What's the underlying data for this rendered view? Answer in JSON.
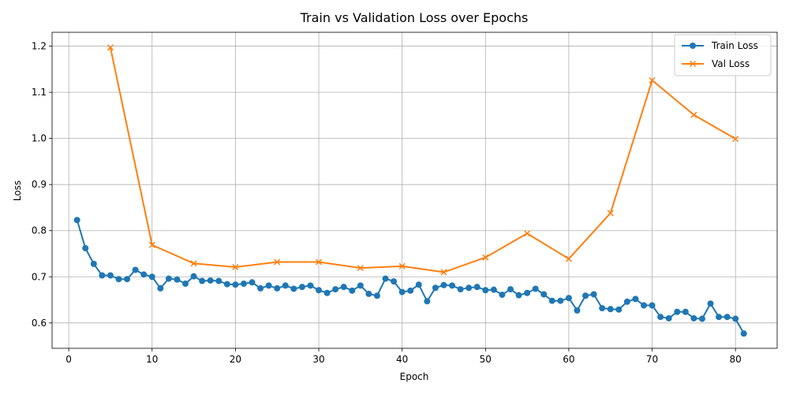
{
  "chart_data": {
    "type": "line",
    "title": "Train vs Validation Loss over Epochs",
    "xlabel": "Epoch",
    "ylabel": "Loss",
    "xlim": [
      -2,
      85
    ],
    "ylim": [
      0.545,
      1.23
    ],
    "xticks": [
      0,
      10,
      20,
      30,
      40,
      50,
      60,
      70,
      80
    ],
    "yticks": [
      0.6,
      0.7,
      0.8,
      0.9,
      1.0,
      1.1,
      1.2
    ],
    "grid": true,
    "legend_position": "top-right",
    "series": [
      {
        "name": "Train Loss",
        "color": "#1f77b4",
        "marker": "circle",
        "x": [
          1,
          2,
          3,
          4,
          5,
          6,
          7,
          8,
          9,
          10,
          11,
          12,
          13,
          14,
          15,
          16,
          17,
          18,
          19,
          20,
          21,
          22,
          23,
          24,
          25,
          26,
          27,
          28,
          29,
          30,
          31,
          32,
          33,
          34,
          35,
          36,
          37,
          38,
          39,
          40,
          41,
          42,
          43,
          44,
          45,
          46,
          47,
          48,
          49,
          50,
          51,
          52,
          53,
          54,
          55,
          56,
          57,
          58,
          59,
          60,
          61,
          62,
          63,
          64,
          65,
          66,
          67,
          68,
          69,
          70,
          71,
          72,
          73,
          74,
          75,
          76,
          77,
          78,
          79,
          80,
          81
        ],
        "y": [
          0.823,
          0.762,
          0.728,
          0.703,
          0.703,
          0.695,
          0.695,
          0.715,
          0.705,
          0.7,
          0.675,
          0.696,
          0.694,
          0.685,
          0.701,
          0.691,
          0.692,
          0.691,
          0.684,
          0.683,
          0.685,
          0.688,
          0.675,
          0.681,
          0.675,
          0.681,
          0.674,
          0.678,
          0.681,
          0.671,
          0.665,
          0.673,
          0.678,
          0.67,
          0.681,
          0.663,
          0.659,
          0.696,
          0.69,
          0.667,
          0.67,
          0.683,
          0.647,
          0.676,
          0.682,
          0.681,
          0.673,
          0.676,
          0.678,
          0.671,
          0.672,
          0.661,
          0.673,
          0.66,
          0.665,
          0.674,
          0.662,
          0.648,
          0.648,
          0.654,
          0.627,
          0.659,
          0.662,
          0.632,
          0.63,
          0.629,
          0.646,
          0.652,
          0.638,
          0.638,
          0.613,
          0.61,
          0.624,
          0.624,
          0.61,
          0.609,
          0.642,
          0.613,
          0.613,
          0.609,
          0.577
        ]
      },
      {
        "name": "Val Loss",
        "color": "#ff7f0e",
        "marker": "x",
        "x": [
          5,
          10,
          15,
          20,
          25,
          30,
          35,
          40,
          45,
          50,
          55,
          60,
          65,
          70,
          75,
          80
        ],
        "y": [
          1.197,
          0.769,
          0.729,
          0.721,
          0.732,
          0.732,
          0.719,
          0.723,
          0.71,
          0.742,
          0.794,
          0.739,
          0.838,
          1.126,
          1.051,
          0.999
        ]
      }
    ]
  }
}
